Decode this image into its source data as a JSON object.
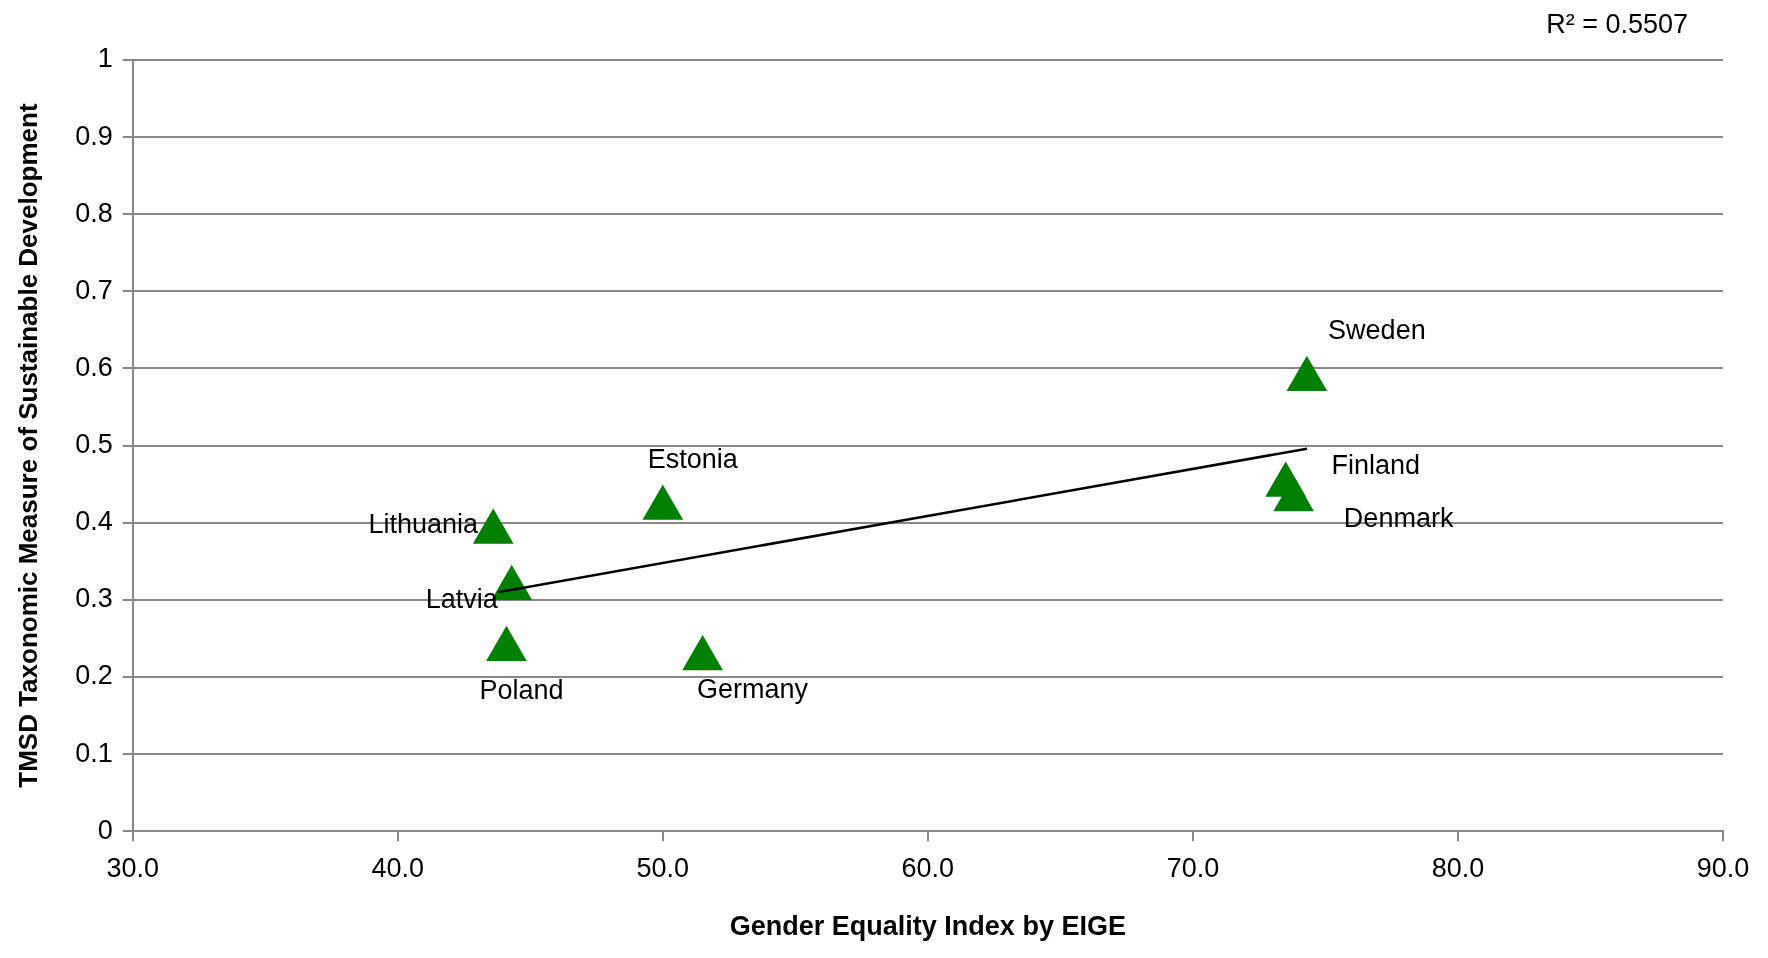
{
  "chart_data": {
    "type": "scatter",
    "xlabel": "Gender Equality Index by EIGE",
    "ylabel": "TMSD Taxonomic Measure of Sustainable Development",
    "xlim": [
      30,
      90
    ],
    "xticks": [
      {
        "value": 30,
        "label": "30.0"
      },
      {
        "value": 40,
        "label": "40.0"
      },
      {
        "value": 50,
        "label": "50.0"
      },
      {
        "value": 60,
        "label": "60.0"
      },
      {
        "value": 70,
        "label": "70.0"
      },
      {
        "value": 80,
        "label": "80.0"
      },
      {
        "value": 90,
        "label": "90.0"
      }
    ],
    "ylim": [
      0,
      1
    ],
    "yticks": [
      0,
      0.1,
      0.2,
      0.3,
      0.4,
      0.5,
      0.6,
      0.7,
      0.8,
      0.9,
      1
    ],
    "grid": "y",
    "legend": false,
    "marker": "triangle",
    "series": [
      {
        "name": "Sweden",
        "color": "#008000",
        "x": [
          74.3
        ],
        "values": [
          0.586
        ]
      },
      {
        "name": "Estonia",
        "color": "#008000",
        "x": [
          50.0
        ],
        "values": [
          0.419
        ]
      },
      {
        "name": "Lithuania",
        "color": "#008000",
        "x": [
          43.6
        ],
        "values": [
          0.388
        ]
      },
      {
        "name": "Latvia",
        "color": "#008000",
        "x": [
          44.3
        ],
        "values": [
          0.315
        ]
      },
      {
        "name": "Poland",
        "color": "#008000",
        "x": [
          44.1
        ],
        "values": [
          0.236
        ]
      },
      {
        "name": "Germany",
        "color": "#008000",
        "x": [
          51.5
        ],
        "values": [
          0.224
        ]
      },
      {
        "name": "Finland",
        "color": "#008000",
        "x": [
          73.5
        ],
        "values": [
          0.449
        ]
      },
      {
        "name": "Denmark",
        "color": "#008000",
        "x": [
          73.8
        ],
        "values": [
          0.43
        ]
      },
      {
        "type": "line",
        "color": "#000000",
        "marker": "none",
        "x": [
          43.8,
          74.3
        ],
        "values": [
          0.31,
          0.496
        ]
      }
    ],
    "annotations": [
      "R² = 0.5507"
    ]
  }
}
